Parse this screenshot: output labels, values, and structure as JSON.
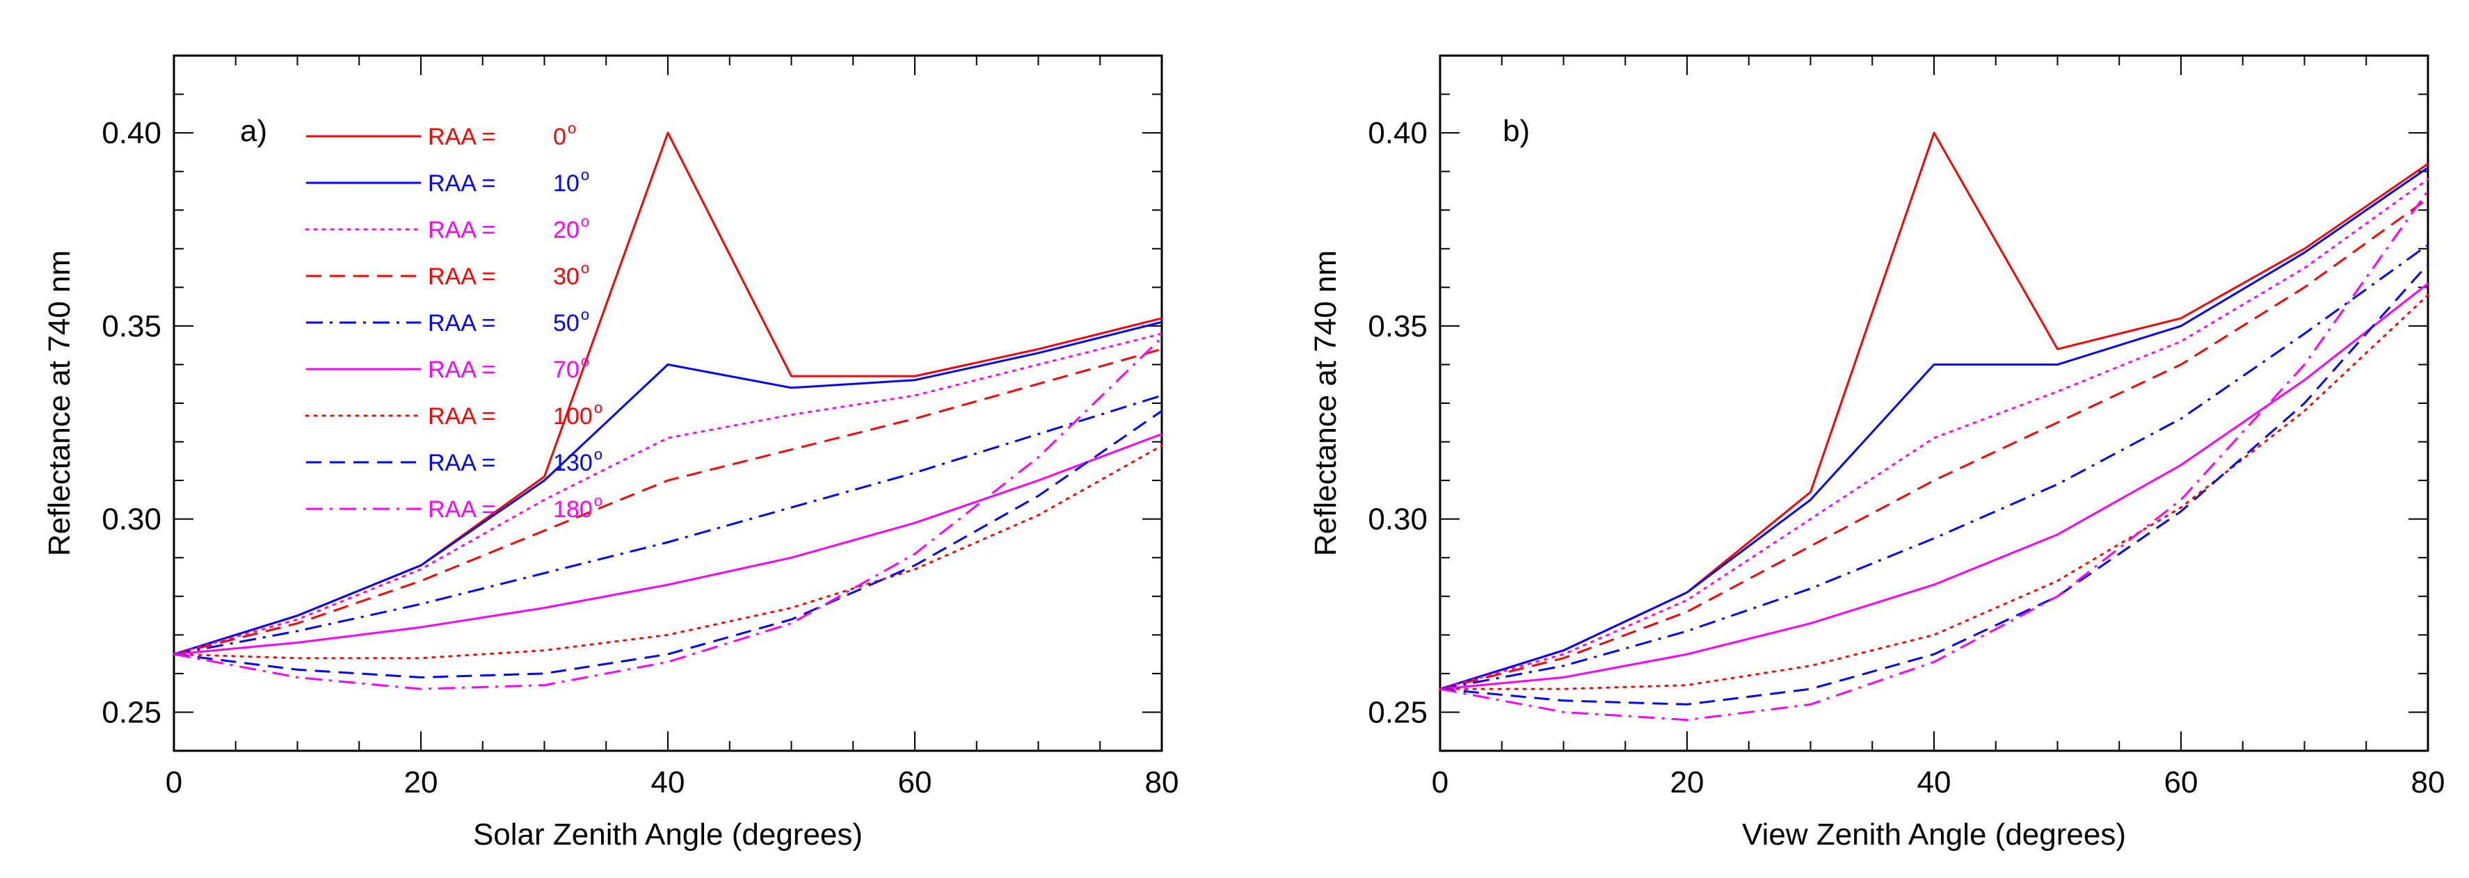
{
  "chart_data": [
    {
      "type": "line",
      "panel_label": "a)",
      "xlabel": "Solar Zenith Angle (degrees)",
      "ylabel": "Reflectance at 740 nm",
      "xlim": [
        0,
        80
      ],
      "ylim": [
        0.24,
        0.42
      ],
      "xticks": [
        0,
        20,
        40,
        60,
        80
      ],
      "xtick_labels": [
        "0",
        "20",
        "40",
        "60",
        "80"
      ],
      "yticks": [
        0.25,
        0.3,
        0.35,
        0.4
      ],
      "ytick_labels": [
        "0.25",
        "0.30",
        "0.35",
        "0.40"
      ],
      "x": [
        0,
        10,
        20,
        30,
        40,
        50,
        60,
        70,
        80
      ],
      "legend": {
        "position": "top-left",
        "entries": [
          {
            "label": "RAA =",
            "value": "0",
            "unit": "o"
          },
          {
            "label": "RAA =",
            "value": "10",
            "unit": "o"
          },
          {
            "label": "RAA =",
            "value": "20",
            "unit": "o"
          },
          {
            "label": "RAA =",
            "value": "30",
            "unit": "o"
          },
          {
            "label": "RAA =",
            "value": "50",
            "unit": "o"
          },
          {
            "label": "RAA =",
            "value": "70",
            "unit": "o"
          },
          {
            "label": "RAA =",
            "value": "100",
            "unit": "o"
          },
          {
            "label": "RAA =",
            "value": "130",
            "unit": "o"
          },
          {
            "label": "RAA =",
            "value": "180",
            "unit": "o"
          }
        ]
      },
      "series": [
        {
          "name": "RAA = 0°",
          "color": "#ff0000",
          "dash": "solid",
          "values": [
            0.265,
            0.275,
            0.288,
            0.311,
            0.4,
            0.337,
            0.337,
            0.344,
            0.352
          ]
        },
        {
          "name": "RAA = 10°",
          "color": "#0000ff",
          "dash": "solid",
          "values": [
            0.265,
            0.275,
            0.288,
            0.31,
            0.34,
            0.334,
            0.336,
            0.343,
            0.351
          ]
        },
        {
          "name": "RAA = 20°",
          "color": "#ff00ff",
          "dash": "dotted",
          "values": [
            0.265,
            0.274,
            0.287,
            0.305,
            0.321,
            0.327,
            0.332,
            0.34,
            0.348
          ]
        },
        {
          "name": "RAA = 30°",
          "color": "#ff0000",
          "dash": "dashed",
          "values": [
            0.265,
            0.273,
            0.284,
            0.297,
            0.31,
            0.318,
            0.326,
            0.335,
            0.344
          ]
        },
        {
          "name": "RAA = 50°",
          "color": "#0000ff",
          "dash": "dashdot",
          "values": [
            0.265,
            0.271,
            0.278,
            0.286,
            0.294,
            0.303,
            0.312,
            0.322,
            0.332
          ]
        },
        {
          "name": "RAA = 70°",
          "color": "#ff00ff",
          "dash": "solid",
          "values": [
            0.265,
            0.268,
            0.272,
            0.277,
            0.283,
            0.29,
            0.299,
            0.31,
            0.322
          ]
        },
        {
          "name": "RAA = 100°",
          "color": "#ff0000",
          "dash": "dotted",
          "values": [
            0.265,
            0.264,
            0.264,
            0.266,
            0.27,
            0.277,
            0.287,
            0.301,
            0.319
          ]
        },
        {
          "name": "RAA = 130°",
          "color": "#0000ff",
          "dash": "dashed",
          "values": [
            0.265,
            0.261,
            0.259,
            0.26,
            0.265,
            0.274,
            0.288,
            0.306,
            0.328
          ]
        },
        {
          "name": "RAA = 180°",
          "color": "#ff00ff",
          "dash": "dashdot",
          "values": [
            0.265,
            0.259,
            0.256,
            0.257,
            0.263,
            0.273,
            0.291,
            0.316,
            0.347
          ]
        }
      ]
    },
    {
      "type": "line",
      "panel_label": "b)",
      "xlabel": "View Zenith Angle (degrees)",
      "ylabel": "Reflectance at 740 nm",
      "xlim": [
        0,
        80
      ],
      "ylim": [
        0.24,
        0.42
      ],
      "xticks": [
        0,
        20,
        40,
        60,
        80
      ],
      "xtick_labels": [
        "0",
        "20",
        "40",
        "60",
        "80"
      ],
      "yticks": [
        0.25,
        0.3,
        0.35,
        0.4
      ],
      "ytick_labels": [
        "0.25",
        "0.30",
        "0.35",
        "0.40"
      ],
      "x": [
        0,
        10,
        20,
        30,
        40,
        50,
        60,
        70,
        80
      ],
      "series": [
        {
          "name": "RAA = 0°",
          "color": "#ff0000",
          "dash": "solid",
          "values": [
            0.256,
            0.266,
            0.281,
            0.307,
            0.4,
            0.344,
            0.352,
            0.37,
            0.392
          ]
        },
        {
          "name": "RAA = 10°",
          "color": "#0000ff",
          "dash": "solid",
          "values": [
            0.256,
            0.266,
            0.281,
            0.305,
            0.34,
            0.34,
            0.35,
            0.369,
            0.391
          ]
        },
        {
          "name": "RAA = 20°",
          "color": "#ff00ff",
          "dash": "dotted",
          "values": [
            0.256,
            0.265,
            0.279,
            0.3,
            0.321,
            0.333,
            0.346,
            0.365,
            0.388
          ]
        },
        {
          "name": "RAA = 30°",
          "color": "#ff0000",
          "dash": "dashed",
          "values": [
            0.256,
            0.264,
            0.276,
            0.293,
            0.31,
            0.325,
            0.34,
            0.36,
            0.383
          ]
        },
        {
          "name": "RAA = 50°",
          "color": "#0000ff",
          "dash": "dashdot",
          "values": [
            0.256,
            0.262,
            0.271,
            0.282,
            0.295,
            0.309,
            0.326,
            0.348,
            0.371
          ]
        },
        {
          "name": "RAA = 70°",
          "color": "#ff00ff",
          "dash": "solid",
          "values": [
            0.256,
            0.259,
            0.265,
            0.273,
            0.283,
            0.296,
            0.314,
            0.336,
            0.361
          ]
        },
        {
          "name": "RAA = 100°",
          "color": "#ff0000",
          "dash": "dotted",
          "values": [
            0.256,
            0.256,
            0.257,
            0.262,
            0.27,
            0.284,
            0.303,
            0.328,
            0.358
          ]
        },
        {
          "name": "RAA = 130°",
          "color": "#0000ff",
          "dash": "dashed",
          "values": [
            0.256,
            0.253,
            0.252,
            0.256,
            0.265,
            0.28,
            0.302,
            0.33,
            0.366
          ]
        },
        {
          "name": "RAA = 180°",
          "color": "#ff00ff",
          "dash": "dashdot",
          "values": [
            0.256,
            0.25,
            0.248,
            0.252,
            0.263,
            0.28,
            0.305,
            0.34,
            0.385
          ]
        }
      ]
    }
  ]
}
